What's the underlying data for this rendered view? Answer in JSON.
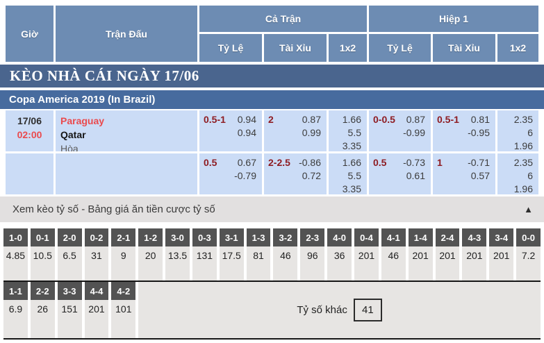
{
  "colors": {
    "header_blue": "#6d8cb3",
    "section_bar_blue": "#4a658e",
    "league_bar_blue": "#476b9e",
    "row_light_blue": "#cbdcf6",
    "accent_red": "#ea4a4d",
    "handicap_maroon": "#8e1c22",
    "score_label_gray": "#535353",
    "score_cell_gray": "#e7e5e3"
  },
  "table_header": {
    "time": "Giờ",
    "match": "Trận Đấu",
    "full_time": "Cả Trận",
    "first_half": "Hiệp 1",
    "handicap": "Tỷ Lệ",
    "over_under": "Tài Xỉu",
    "one_x_two": "1x2"
  },
  "section_title": "KÈO NHÀ CÁI NGÀY 17/06",
  "league_title": "Copa America 2019 (In Brazil)",
  "match": {
    "date": "17/06",
    "time": "02:00",
    "home_team": "Paraguay",
    "away_team": "Qatar",
    "draw_label": "Hòa"
  },
  "odds_rows": [
    {
      "ft_hdp": {
        "line": "0.5-1",
        "v1": "0.94",
        "v2": "0.94"
      },
      "ft_ou": {
        "line": "2",
        "v1": "0.87",
        "v2": "0.99"
      },
      "ft_1x2": {
        "home": "1.66",
        "draw": "5.5",
        "away": "3.35"
      },
      "h1_hdp": {
        "line": "0-0.5",
        "v1": "0.87",
        "v2": "-0.99"
      },
      "h1_ou": {
        "line": "0.5-1",
        "v1": "0.81",
        "v2": "-0.95"
      },
      "h1_1x2": {
        "home": "2.35",
        "draw": "6",
        "away": "1.96"
      }
    },
    {
      "ft_hdp": {
        "line": "0.5",
        "v1": "0.67",
        "v2": "-0.79"
      },
      "ft_ou": {
        "line": "2-2.5",
        "v1": "-0.86",
        "v2": "0.72"
      },
      "ft_1x2": {
        "home": "1.66",
        "draw": "5.5",
        "away": "3.35"
      },
      "h1_hdp": {
        "line": "0.5",
        "v1": "-0.73",
        "v2": "0.61"
      },
      "h1_ou": {
        "line": "1",
        "v1": "-0.71",
        "v2": "0.57"
      },
      "h1_1x2": {
        "home": "2.35",
        "draw": "6",
        "away": "1.96"
      }
    }
  ],
  "score_panel": {
    "toggle_label": "Xem kèo tỷ số - Bảng giá ăn tiền cược tỷ số",
    "collapse_icon": "▲",
    "row1": [
      {
        "score": "1-0",
        "odds": "4.85"
      },
      {
        "score": "0-1",
        "odds": "10.5"
      },
      {
        "score": "2-0",
        "odds": "6.5"
      },
      {
        "score": "0-2",
        "odds": "31"
      },
      {
        "score": "2-1",
        "odds": "9"
      },
      {
        "score": "1-2",
        "odds": "20"
      },
      {
        "score": "3-0",
        "odds": "13.5"
      },
      {
        "score": "0-3",
        "odds": "131"
      },
      {
        "score": "3-1",
        "odds": "17.5"
      },
      {
        "score": "1-3",
        "odds": "81"
      },
      {
        "score": "3-2",
        "odds": "46"
      },
      {
        "score": "2-3",
        "odds": "96"
      },
      {
        "score": "4-0",
        "odds": "36"
      },
      {
        "score": "0-4",
        "odds": "201"
      },
      {
        "score": "4-1",
        "odds": "46"
      },
      {
        "score": "1-4",
        "odds": "201"
      },
      {
        "score": "2-4",
        "odds": "201"
      },
      {
        "score": "4-3",
        "odds": "201"
      },
      {
        "score": "3-4",
        "odds": "201"
      },
      {
        "score": "0-0",
        "odds": "7.2"
      }
    ],
    "row2": [
      {
        "score": "1-1",
        "odds": "6.9"
      },
      {
        "score": "2-2",
        "odds": "26"
      },
      {
        "score": "3-3",
        "odds": "151"
      },
      {
        "score": "4-4",
        "odds": "201"
      },
      {
        "score": "4-2",
        "odds": "101"
      }
    ],
    "other_score_label": "Tỷ số khác",
    "other_score_odds": "41"
  }
}
